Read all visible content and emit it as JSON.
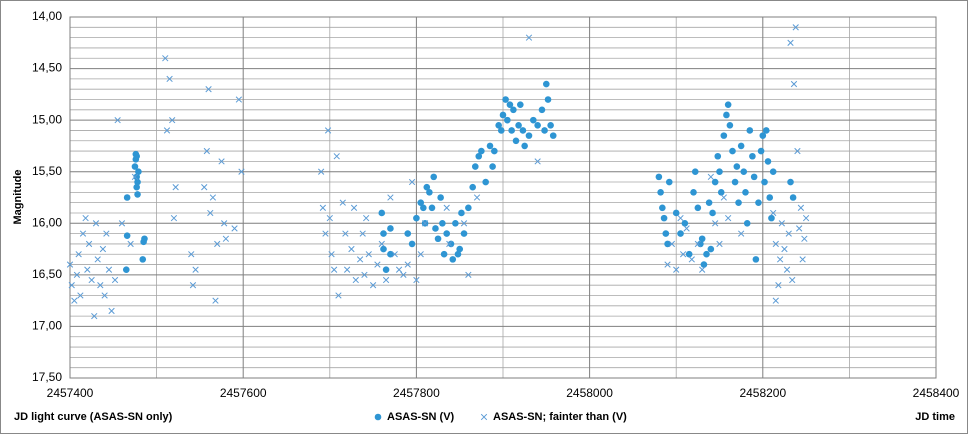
{
  "chart_data": {
    "type": "scatter",
    "title": "JD light curve (ASAS-SN only)",
    "x_label": "JD time",
    "y_label": "Magnitude",
    "y_reversed": true,
    "grid": true,
    "xlim": [
      2457400,
      2458400
    ],
    "xticks": [
      2457400,
      2457600,
      2457800,
      2458000,
      2458200,
      2458400
    ],
    "x_minor_ticks": [
      2457500,
      2457700,
      2457900,
      2458100,
      2458300
    ],
    "ylim": [
      14,
      17.5
    ],
    "yticks": [
      {
        "value": 14,
        "label": "14,00"
      },
      {
        "value": 14.5,
        "label": "14,50"
      },
      {
        "value": 15,
        "label": "15,00"
      },
      {
        "value": 15.5,
        "label": "15,50"
      },
      {
        "value": 16,
        "label": "16,00"
      },
      {
        "value": 16.5,
        "label": "16,50"
      },
      {
        "value": 17,
        "label": "17,00"
      },
      {
        "value": 17.5,
        "label": "17,50"
      }
    ],
    "y_minor_ticks": [
      14.1,
      14.2,
      14.3,
      14.4,
      14.6,
      14.7,
      14.8,
      14.9,
      15.1,
      15.2,
      15.3,
      15.4,
      15.6,
      15.7,
      15.8,
      15.9,
      16.1,
      16.2,
      16.3,
      16.4,
      16.6,
      16.7,
      16.8,
      16.9,
      17.1,
      17.2,
      17.3,
      17.4
    ],
    "series": [
      {
        "name": "ASAS-SN (V)",
        "marker": "circle",
        "color": "#2e95d3",
        "x": [
          2457465,
          2457466,
          2457466,
          2457475,
          2457476,
          2457476,
          2457477,
          2457477,
          2457478,
          2457478,
          2457479,
          2457477,
          2457485,
          2457486,
          2457484,
          2457760,
          2457762,
          2457762,
          2457765,
          2457770,
          2457770,
          2457790,
          2457795,
          2457800,
          2457805,
          2457808,
          2457810,
          2457812,
          2457815,
          2457818,
          2457820,
          2457822,
          2457825,
          2457828,
          2457830,
          2457832,
          2457835,
          2457840,
          2457842,
          2457845,
          2457848,
          2457850,
          2457852,
          2457855,
          2457860,
          2457865,
          2457868,
          2457872,
          2457875,
          2457880,
          2457885,
          2457888,
          2457890,
          2457895,
          2457898,
          2457900,
          2457903,
          2457905,
          2457908,
          2457910,
          2457912,
          2457915,
          2457918,
          2457920,
          2457923,
          2457925,
          2457930,
          2457935,
          2457940,
          2457945,
          2457948,
          2457950,
          2457952,
          2457955,
          2457958,
          2458080,
          2458082,
          2458084,
          2458086,
          2458088,
          2458090,
          2458092,
          2458100,
          2458105,
          2458110,
          2458115,
          2458120,
          2458122,
          2458125,
          2458128,
          2458130,
          2458132,
          2458135,
          2458138,
          2458140,
          2458142,
          2458145,
          2458148,
          2458150,
          2458152,
          2458155,
          2458158,
          2458160,
          2458162,
          2458165,
          2458168,
          2458170,
          2458172,
          2458175,
          2458178,
          2458180,
          2458182,
          2458185,
          2458188,
          2458190,
          2458192,
          2458195,
          2458198,
          2458200,
          2458202,
          2458204,
          2458206,
          2458208,
          2458210,
          2458212,
          2458232,
          2458235
        ],
        "values": [
          16.45,
          16.12,
          15.75,
          15.45,
          15.38,
          15.33,
          15.55,
          15.65,
          15.6,
          15.72,
          15.5,
          15.35,
          16.18,
          16.15,
          16.35,
          15.9,
          16.1,
          16.25,
          16.45,
          16.05,
          16.3,
          16.1,
          16.2,
          15.95,
          15.8,
          15.85,
          16.0,
          15.65,
          15.7,
          15.85,
          15.55,
          16.05,
          16.15,
          15.75,
          16.0,
          16.3,
          16.1,
          16.2,
          16.35,
          16.0,
          16.3,
          16.25,
          15.9,
          16.1,
          15.85,
          15.65,
          15.45,
          15.35,
          15.3,
          15.6,
          15.25,
          15.45,
          15.3,
          15.05,
          15.1,
          14.95,
          14.8,
          15.0,
          14.85,
          15.1,
          14.9,
          15.2,
          15.05,
          14.85,
          15.1,
          15.25,
          15.15,
          15.0,
          15.05,
          14.9,
          15.1,
          14.65,
          14.8,
          15.05,
          15.15,
          15.55,
          15.7,
          15.85,
          15.95,
          16.1,
          16.2,
          15.6,
          15.9,
          16.1,
          16.0,
          16.3,
          15.7,
          15.5,
          15.85,
          16.2,
          16.15,
          16.4,
          16.3,
          15.8,
          16.25,
          15.9,
          15.6,
          15.35,
          15.5,
          15.7,
          15.15,
          14.95,
          14.85,
          15.05,
          15.3,
          15.6,
          15.45,
          15.8,
          15.25,
          15.5,
          15.7,
          16.0,
          15.1,
          15.35,
          15.55,
          16.35,
          15.8,
          15.3,
          15.15,
          15.6,
          15.1,
          15.4,
          15.75,
          15.95,
          15.5,
          15.6,
          15.75
        ]
      },
      {
        "name": "ASAS-SN; fainter than (V)",
        "marker": "x",
        "color": "#5b9bd5",
        "x": [
          2457400,
          2457402,
          2457405,
          2457408,
          2457410,
          2457412,
          2457415,
          2457418,
          2457420,
          2457422,
          2457425,
          2457428,
          2457430,
          2457432,
          2457435,
          2457438,
          2457440,
          2457442,
          2457445,
          2457448,
          2457452,
          2457455,
          2457460,
          2457470,
          2457475,
          2457510,
          2457512,
          2457515,
          2457518,
          2457520,
          2457522,
          2457540,
          2457542,
          2457545,
          2457555,
          2457558,
          2457560,
          2457562,
          2457565,
          2457568,
          2457570,
          2457575,
          2457578,
          2457580,
          2457590,
          2457595,
          2457598,
          2457690,
          2457692,
          2457695,
          2457698,
          2457700,
          2457702,
          2457705,
          2457708,
          2457710,
          2457715,
          2457718,
          2457720,
          2457725,
          2457728,
          2457730,
          2457735,
          2457738,
          2457740,
          2457742,
          2457745,
          2457750,
          2457755,
          2457760,
          2457765,
          2457770,
          2457775,
          2457780,
          2457785,
          2457790,
          2457795,
          2457800,
          2457805,
          2457810,
          2457835,
          2457838,
          2457855,
          2457860,
          2457870,
          2457930,
          2457940,
          2458090,
          2458095,
          2458100,
          2458105,
          2458108,
          2458112,
          2458118,
          2458125,
          2458130,
          2458140,
          2458145,
          2458150,
          2458155,
          2458160,
          2458175,
          2458215,
          2458218,
          2458220,
          2458222,
          2458225,
          2458228,
          2458230,
          2458232,
          2458234,
          2458236,
          2458238,
          2458240,
          2458242,
          2458244,
          2458246,
          2458248,
          2458250,
          2458215,
          2458212
        ],
        "values": [
          16.4,
          16.6,
          16.75,
          16.5,
          16.3,
          16.7,
          16.1,
          15.95,
          16.45,
          16.2,
          16.55,
          16.9,
          16.0,
          16.35,
          16.6,
          16.25,
          16.7,
          16.1,
          16.45,
          16.85,
          16.55,
          15.0,
          16.0,
          16.2,
          15.55,
          14.4,
          15.1,
          14.6,
          15.0,
          15.95,
          15.65,
          16.3,
          16.6,
          16.45,
          15.65,
          15.3,
          14.7,
          15.9,
          15.75,
          16.75,
          16.2,
          15.4,
          16.0,
          16.15,
          16.05,
          14.8,
          15.5,
          15.5,
          15.85,
          16.1,
          15.1,
          15.95,
          16.3,
          16.45,
          15.35,
          16.7,
          15.8,
          16.1,
          16.45,
          16.25,
          15.85,
          16.55,
          16.35,
          16.1,
          16.5,
          15.95,
          16.3,
          16.6,
          16.4,
          16.2,
          16.55,
          15.75,
          16.3,
          16.45,
          16.5,
          16.4,
          15.6,
          16.55,
          16.3,
          16.0,
          15.85,
          16.2,
          16.0,
          16.5,
          15.75,
          14.2,
          15.4,
          16.4,
          16.2,
          16.45,
          15.95,
          16.3,
          16.05,
          16.35,
          16.2,
          16.45,
          15.55,
          16.0,
          16.2,
          15.75,
          15.95,
          16.1,
          16.2,
          16.6,
          16.35,
          16.0,
          16.25,
          16.45,
          16.1,
          14.25,
          16.55,
          14.65,
          14.1,
          15.3,
          16.05,
          15.85,
          16.35,
          16.15,
          15.95,
          16.75,
          15.9
        ]
      }
    ]
  }
}
